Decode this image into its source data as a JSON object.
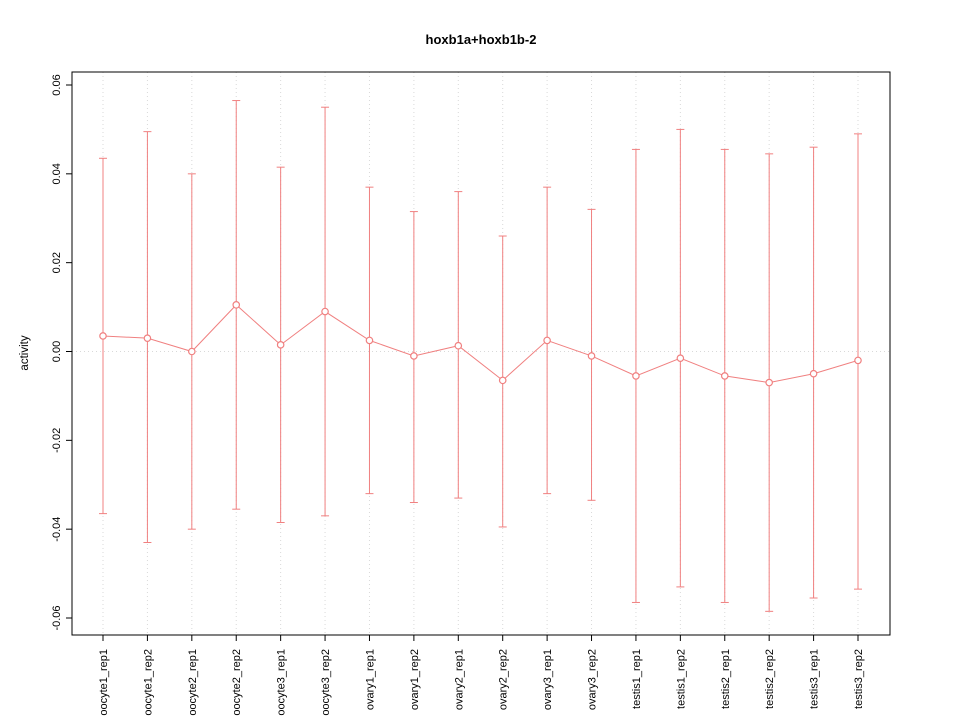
{
  "chart_data": {
    "type": "scatter",
    "subtype": "points-with-error-bars",
    "title": "hoxb1a+hoxb1b-2",
    "xlabel": "",
    "ylabel": "activity",
    "ylim": [
      -0.06,
      0.06
    ],
    "yticks": [
      -0.06,
      -0.04,
      -0.02,
      0.0,
      0.02,
      0.04,
      0.06
    ],
    "grid": {
      "vertical_dotted_per_category": true,
      "horizontal_dotted_zero_line": true
    },
    "legend": "none",
    "categories": [
      "oocyte1_rep1",
      "oocyte1_rep2",
      "oocyte2_rep1",
      "oocyte2_rep2",
      "oocyte3_rep1",
      "oocyte3_rep2",
      "ovary1_rep1",
      "ovary1_rep2",
      "ovary2_rep1",
      "ovary2_rep2",
      "ovary3_rep1",
      "ovary3_rep2",
      "testis1_rep1",
      "testis1_rep2",
      "testis2_rep1",
      "testis2_rep2",
      "testis3_rep1",
      "testis3_rep2"
    ],
    "series": [
      {
        "name": "activity",
        "means": [
          0.0035,
          0.003,
          0.0,
          0.0105,
          0.0015,
          0.009,
          0.0025,
          -0.001,
          0.0013,
          -0.0065,
          0.0025,
          -0.001,
          -0.0055,
          -0.0015,
          -0.0055,
          -0.007,
          -0.005,
          -0.002
        ],
        "upper": [
          0.0435,
          0.0495,
          0.04,
          0.0565,
          0.0415,
          0.055,
          0.037,
          0.0315,
          0.036,
          0.026,
          0.037,
          0.032,
          0.0455,
          0.05,
          0.0455,
          0.0445,
          0.046,
          0.049
        ],
        "lower": [
          -0.0365,
          -0.043,
          -0.04,
          -0.0355,
          -0.0385,
          -0.037,
          -0.032,
          -0.034,
          -0.033,
          -0.0395,
          -0.032,
          -0.0335,
          -0.0565,
          -0.053,
          -0.0565,
          -0.0585,
          -0.0555,
          -0.0535
        ]
      }
    ],
    "colors": {
      "points": "#f08080",
      "error_bars": "#f08080",
      "connect_line": "#f08080",
      "grid": "#d9d9d9",
      "axis": "#000000",
      "background": "#ffffff"
    }
  }
}
